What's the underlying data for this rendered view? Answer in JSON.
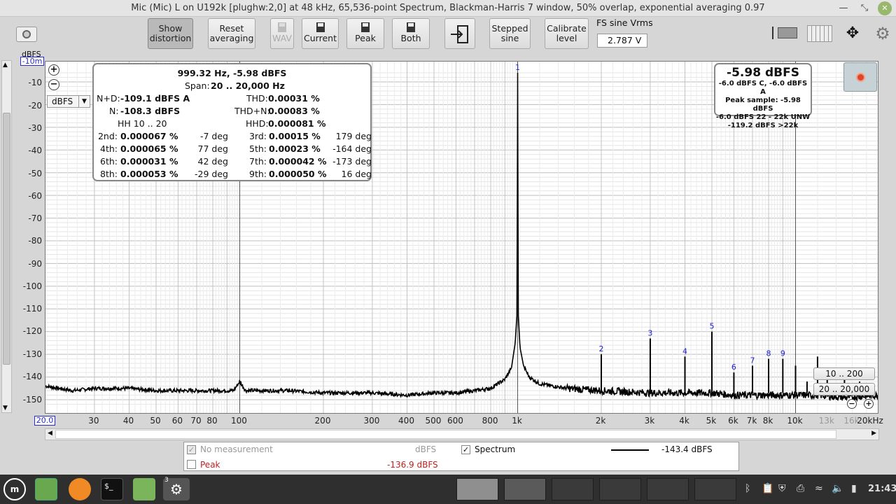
{
  "window": {
    "title": "Mic (Mic) L on U192k [plughw:2,0] at 48 kHz, 65,536-point Spectrum, Blackman-Harris 7 window, 50% overlap, exponential averaging 0.97"
  },
  "toolbar": {
    "show_distortion": [
      "Show",
      "distortion"
    ],
    "reset_averaging": [
      "Reset",
      "averaging"
    ],
    "wav": "WAV",
    "current": "Current",
    "peak": "Peak",
    "both": "Both",
    "stepped_sine": [
      "Stepped",
      "sine"
    ],
    "calibrate_level": [
      "Calibrate",
      "level"
    ],
    "fs_label": "FS sine Vrms",
    "fs_value": "2.787 V"
  },
  "graph": {
    "y_unit": "dBFS",
    "y_top_label": "-10m",
    "unit_select": "dBFS",
    "y_ticks": [
      "-10",
      "-20",
      "-30",
      "-40",
      "-50",
      "-60",
      "-70",
      "-80",
      "-90",
      "-100",
      "-110",
      "-120",
      "-130",
      "-140",
      "-150"
    ],
    "x_first": "20.0",
    "x_ticks": [
      "30",
      "40",
      "50",
      "60",
      "70",
      "80",
      "100",
      "200",
      "300",
      "400",
      "500",
      "600",
      "800",
      "1k",
      "2k",
      "3k",
      "4k",
      "5k",
      "6k",
      "7k",
      "8k",
      "10k",
      "13k",
      "16k",
      "20kHz"
    ],
    "range_low": "10 .. 200",
    "range_full": "20 .. 20,000"
  },
  "distortion": {
    "headline": "999.32 Hz, -5.98 dBFS",
    "span_label": "Span:",
    "span": "20 .. 20,000 Hz",
    "nd_label": "N+D:",
    "nd": "-109.1 dBFS A",
    "n_label": "N:",
    "n": "-108.3 dBFS",
    "hh_label": "HH 10 .. 20",
    "thd_label": "THD:",
    "thd": "0.00031 %",
    "thdn_label": "THD+N:",
    "thdn": "0.00083 %",
    "hhd_label": "HHD:",
    "hhd": "0.000081 %",
    "harmonics": [
      {
        "label": "2nd:",
        "value": "0.000067 %",
        "phase": "-7 deg"
      },
      {
        "label": "3rd:",
        "value": "0.00015 %",
        "phase": "179 deg"
      },
      {
        "label": "4th:",
        "value": "0.000065 %",
        "phase": "77 deg"
      },
      {
        "label": "5th:",
        "value": "0.00023 %",
        "phase": "-164 deg"
      },
      {
        "label": "6th:",
        "value": "0.000031 %",
        "phase": "42 deg"
      },
      {
        "label": "7th:",
        "value": "0.000042 %",
        "phase": "-173 deg"
      },
      {
        "label": "8th:",
        "value": "0.000053 %",
        "phase": "-29 deg"
      },
      {
        "label": "9th:",
        "value": "0.000050 %",
        "phase": "16 deg"
      }
    ]
  },
  "level": {
    "big": "-5.98 dBFS",
    "lines": [
      "-6.0 dBFS C, -6.0 dBFS A",
      "Peak sample: -5.98 dBFS",
      "-6.0 dBFS 22 - 22k UNW",
      "-119.2 dBFS >22k"
    ]
  },
  "legend": {
    "no_measurement": "No measurement",
    "no_measurement_unit": "dBFS",
    "spectrum": "Spectrum",
    "spectrum_value": "-143.4 dBFS",
    "peak": "Peak",
    "peak_value": "-136.9 dBFS"
  },
  "taskbar": {
    "clock": "21:43",
    "badge": "3"
  },
  "chart_data": {
    "type": "line",
    "xlabel": "",
    "ylabel": "dBFS",
    "x_scale": "log",
    "xlim": [
      20,
      20000
    ],
    "ylim": [
      -152,
      -5
    ],
    "grid": true,
    "harmonic_markers": [
      {
        "label": "1",
        "x": 1000,
        "y": -6
      },
      {
        "label": "2",
        "x": 2000,
        "y": -130
      },
      {
        "label": "3",
        "x": 3000,
        "y": -123
      },
      {
        "label": "4",
        "x": 4000,
        "y": -131
      },
      {
        "label": "5",
        "x": 5000,
        "y": -120
      },
      {
        "label": "6",
        "x": 6000,
        "y": -138
      },
      {
        "label": "7",
        "x": 7000,
        "y": -135
      },
      {
        "label": "8",
        "x": 8000,
        "y": -132
      },
      {
        "label": "9",
        "x": 9000,
        "y": -132
      }
    ],
    "series": [
      {
        "name": "Spectrum",
        "color": "#000000",
        "x": [
          20,
          25,
          30,
          40,
          50,
          60,
          80,
          95,
          100,
          105,
          150,
          200,
          300,
          400,
          500,
          600,
          700,
          800,
          900,
          950,
          980,
          995,
          1000,
          1005,
          1020,
          1050,
          1100,
          1200,
          1500,
          2000,
          3000,
          4000,
          5000,
          6000,
          8000,
          10000,
          12000,
          15000,
          20000
        ],
        "y": [
          -144,
          -146,
          -145,
          -145,
          -146,
          -146,
          -146,
          -146,
          -142,
          -146,
          -146,
          -147,
          -147,
          -148,
          -147,
          -147,
          -146,
          -145,
          -141,
          -136,
          -125,
          -112,
          -6,
          -112,
          -127,
          -135,
          -140,
          -143,
          -145,
          -146,
          -147,
          -147,
          -147,
          -148,
          -148,
          -148,
          -148,
          -149,
          -148
        ]
      }
    ]
  }
}
